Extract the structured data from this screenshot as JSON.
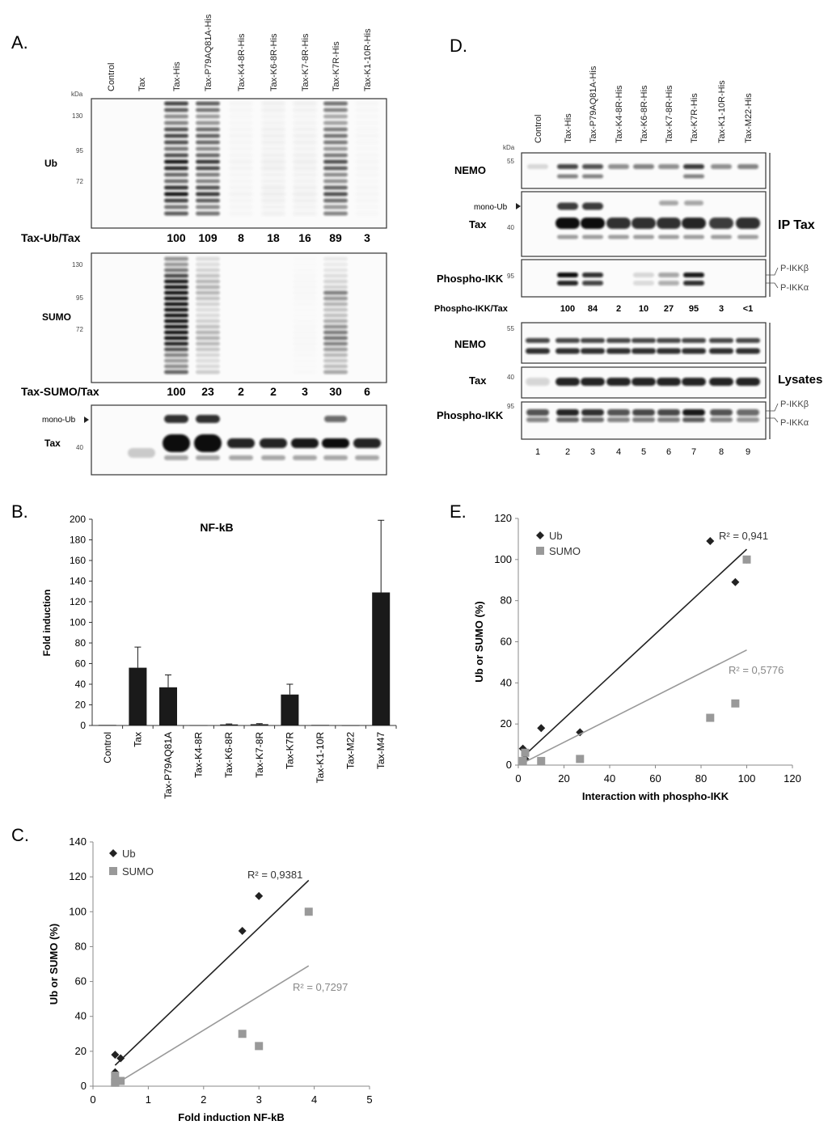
{
  "panelA": {
    "letter": "A.",
    "lanes": [
      "Control",
      "Tax",
      "Tax-His",
      "Tax-P79AQ81A-His",
      "Tax-K4-8R-His",
      "Tax-K6-8R-His",
      "Tax-K7-8R-His",
      "Tax-K7R-His",
      "Tax-K1-10R-His"
    ],
    "kda": "kDa",
    "blots": [
      {
        "label": "Ub",
        "markers": [
          "130",
          "95",
          "72"
        ]
      },
      {
        "label": "SUMO",
        "markers": [
          "130",
          "95",
          "72"
        ]
      },
      {
        "label": "Tax",
        "markers": [
          "40"
        ],
        "side": "mono-Ub"
      }
    ],
    "quant": [
      {
        "label": "Tax-Ub/Tax",
        "values": [
          "100",
          "109",
          "8",
          "18",
          "16",
          "89",
          "3"
        ]
      },
      {
        "label": "Tax-SUMO/Tax",
        "values": [
          "100",
          "23",
          "2",
          "2",
          "3",
          "30",
          "6"
        ]
      }
    ]
  },
  "panelB": {
    "letter": "B.",
    "chart_data": {
      "type": "bar",
      "title": "NF-kB",
      "ylabel": "Fold induction",
      "ylim": [
        0,
        200
      ],
      "yticks": [
        0,
        20,
        40,
        60,
        80,
        100,
        120,
        140,
        160,
        180,
        200
      ],
      "categories": [
        "Control",
        "Tax",
        "Tax-P79AQ81A",
        "Tax-K4-8R",
        "Tax-K6-8R",
        "Tax-K7-8R",
        "Tax-K7R",
        "Tax-K1-10R",
        "Tax-M22",
        "Tax-M47"
      ],
      "values": [
        0.5,
        56,
        37,
        0.3,
        1,
        1.2,
        30,
        0.5,
        0.2,
        129
      ],
      "errors": [
        0,
        20,
        12,
        0,
        0.5,
        0.6,
        10,
        0,
        0,
        70
      ]
    }
  },
  "panelC": {
    "letter": "C.",
    "chart_data": {
      "type": "scatter",
      "xlabel": "Fold induction NF-kB",
      "ylabel": "Ub or SUMO (%)",
      "xlim": [
        0,
        5
      ],
      "ylim": [
        0,
        140
      ],
      "xticks": [
        0,
        1,
        2,
        3,
        4,
        5
      ],
      "yticks": [
        0,
        20,
        40,
        60,
        80,
        100,
        120,
        140
      ],
      "series": [
        {
          "name": "Ub",
          "color": "#222222",
          "marker": "diamond",
          "x": [
            0.4,
            0.5,
            0.4,
            2.7,
            3.0,
            0.4,
            0.4
          ],
          "y": [
            18,
            16,
            8,
            89,
            109,
            3,
            2
          ],
          "trend": [
            [
              0.4,
              12
            ],
            [
              3.9,
              118
            ]
          ],
          "r2": "R² = 0,9381"
        },
        {
          "name": "SUMO",
          "color": "#999999",
          "marker": "square",
          "x": [
            0.4,
            0.5,
            0.4,
            2.7,
            3.0,
            3.9,
            0.4
          ],
          "y": [
            6,
            3,
            2,
            30,
            23,
            100,
            2
          ],
          "trend": [
            [
              0.4,
              1
            ],
            [
              3.9,
              69
            ]
          ],
          "r2": "R² = 0,7297"
        }
      ]
    }
  },
  "panelD": {
    "letter": "D.",
    "lanes": [
      "Control",
      "Tax-His",
      "Tax-P79AQ81A-His",
      "Tax-K4-8R-His",
      "Tax-K6-8R-His",
      "Tax-K7-8R-His",
      "Tax-K7R-His",
      "Tax-K1-10R-His",
      "Tax-M22-His"
    ],
    "kda": "kDa",
    "ip_label": "IP Tax",
    "lys_label": "Lysates",
    "ip_blots": [
      {
        "label": "NEMO",
        "marker": "55"
      },
      {
        "label": "Tax",
        "marker": "40",
        "side": "mono-Ub"
      },
      {
        "label": "Phospho-IKK",
        "marker": "95"
      }
    ],
    "lys_blots": [
      {
        "label": "NEMO",
        "marker": "55"
      },
      {
        "label": "Tax",
        "marker": "40"
      },
      {
        "label": "Phospho-IKK",
        "marker": "95"
      }
    ],
    "ikk_beta": "P-IKKβ",
    "ikk_alpha": "P-IKKα",
    "quant": {
      "label": "Phospho-IKK/Tax",
      "values": [
        "100",
        "84",
        "2",
        "10",
        "27",
        "95",
        "3",
        "<1"
      ]
    },
    "lane_numbers": [
      "1",
      "2",
      "3",
      "4",
      "5",
      "6",
      "7",
      "8",
      "9"
    ]
  },
  "panelE": {
    "letter": "E.",
    "chart_data": {
      "type": "scatter",
      "xlabel": "Interaction with phospho-IKK",
      "ylabel": "Ub or SUMO (%)",
      "xlim": [
        0,
        120
      ],
      "ylim": [
        0,
        120
      ],
      "xticks": [
        0,
        20,
        40,
        60,
        80,
        100,
        120
      ],
      "yticks": [
        0,
        20,
        40,
        60,
        80,
        100,
        120
      ],
      "series": [
        {
          "name": "Ub",
          "color": "#222222",
          "marker": "diamond",
          "x": [
            2,
            3,
            10,
            27,
            84,
            95,
            100
          ],
          "y": [
            8,
            3,
            18,
            16,
            109,
            89,
            100
          ],
          "trend": [
            [
              2,
              4
            ],
            [
              100,
              105
            ]
          ],
          "r2": "R² = 0,941"
        },
        {
          "name": "SUMO",
          "color": "#999999",
          "marker": "square",
          "x": [
            2,
            3,
            10,
            27,
            84,
            95,
            100
          ],
          "y": [
            2,
            6,
            2,
            3,
            23,
            30,
            100
          ],
          "trend": [
            [
              2,
              1
            ],
            [
              100,
              56
            ]
          ],
          "r2": "R² = 0,5776"
        }
      ]
    }
  }
}
